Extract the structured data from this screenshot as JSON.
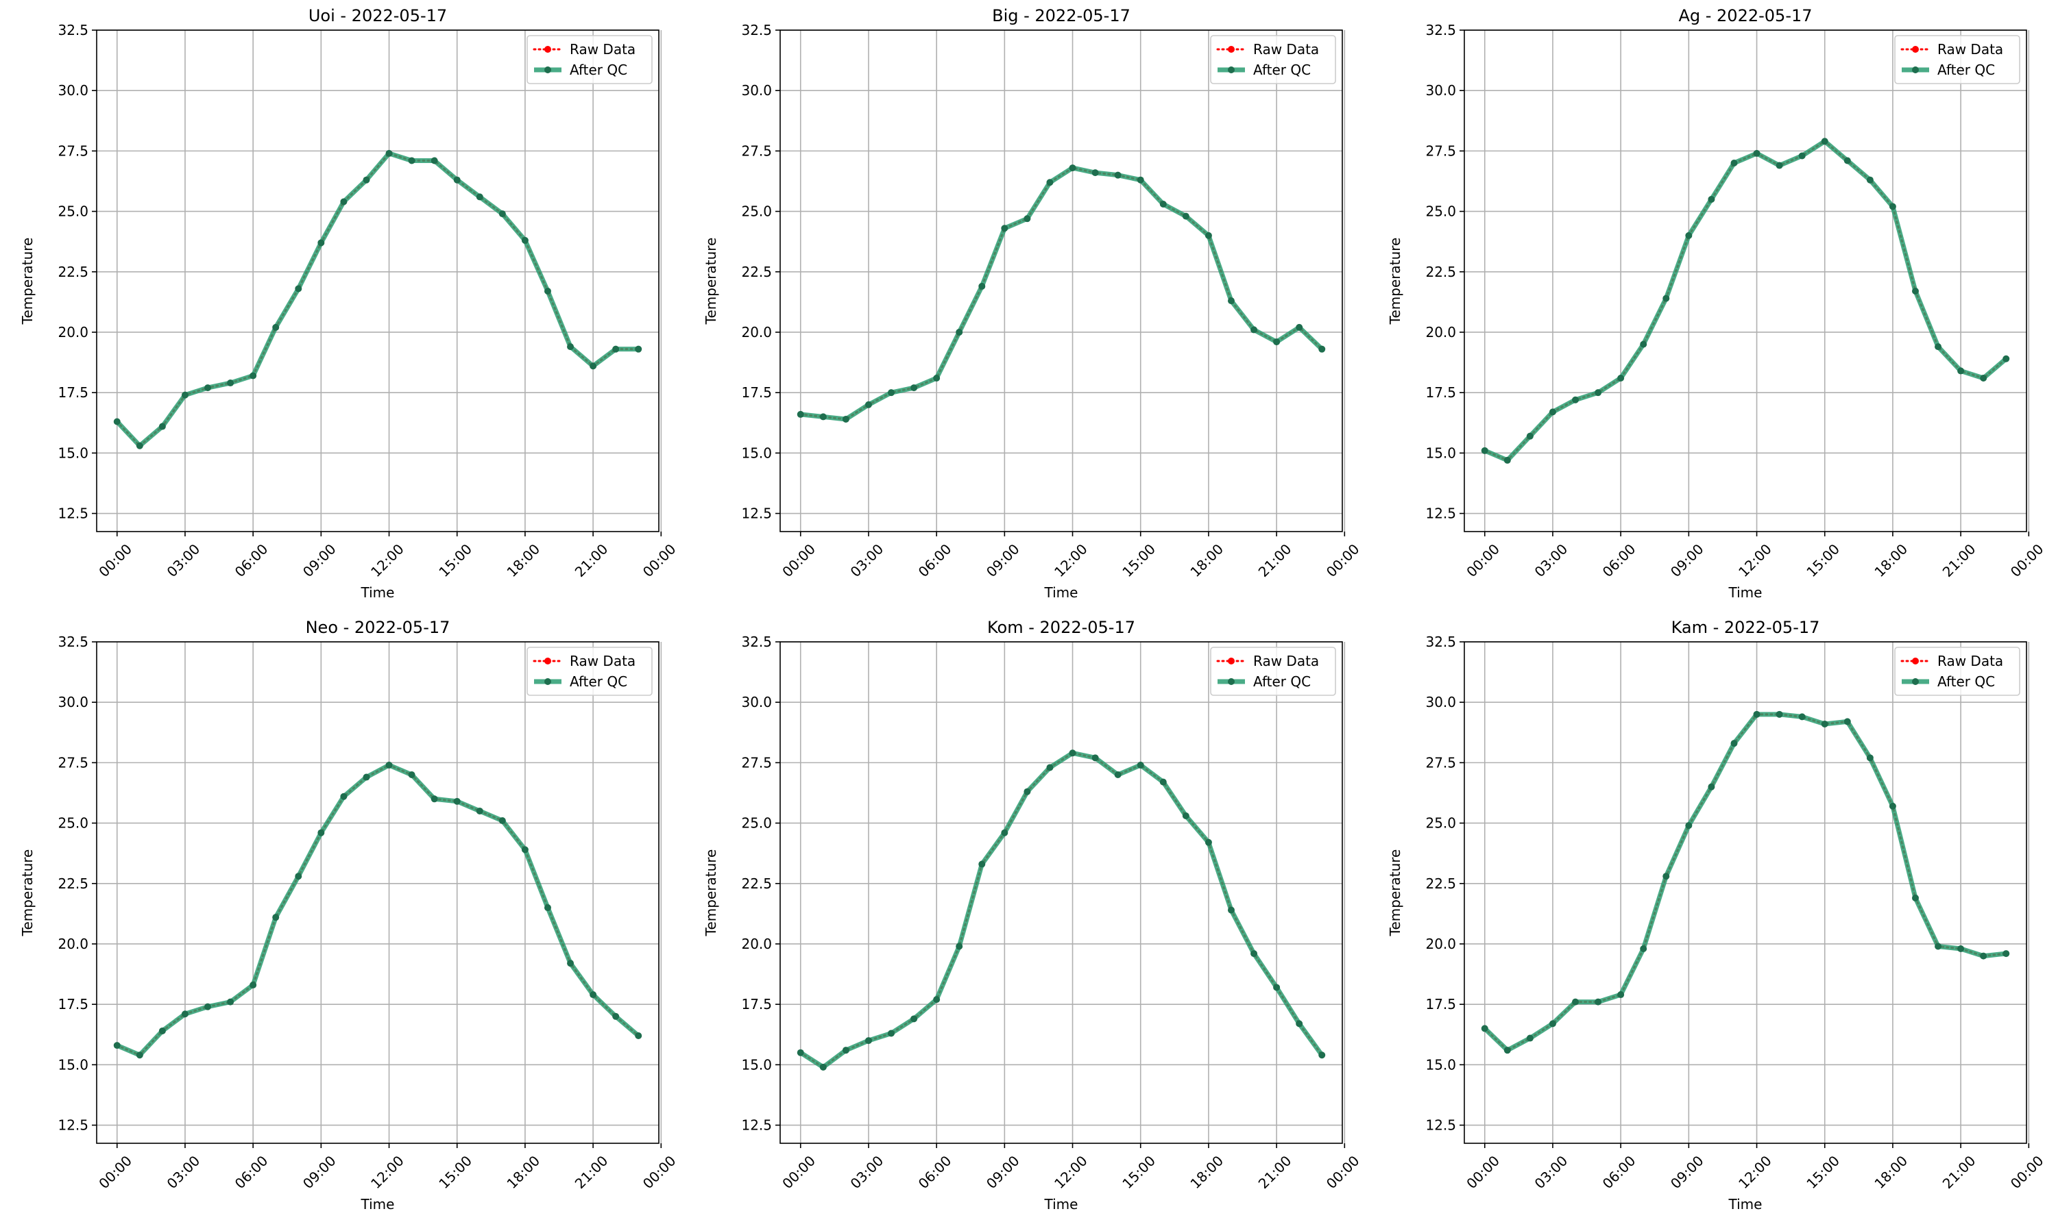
{
  "colors": {
    "raw": "#ff0000",
    "qc": "#2a9d72",
    "qc_marker": "#1e6e4e",
    "grid": "#b0b0b0"
  },
  "chart_data": [
    {
      "type": "line",
      "title": "Uoi - 2022-05-17",
      "xlabel": "Time",
      "ylabel": "Temperature",
      "ylim": [
        11.75,
        32.5
      ],
      "xlim": [
        -0.9,
        23.9
      ],
      "grid": true,
      "legend": "top-right",
      "x_hours": [
        0,
        1,
        2,
        3,
        4,
        5,
        6,
        7,
        8,
        9,
        10,
        11,
        12,
        13,
        14,
        15,
        16,
        17,
        18,
        19,
        20,
        21,
        22,
        23
      ],
      "xtick_hours": [
        0,
        3,
        6,
        9,
        12,
        15,
        18,
        21,
        24
      ],
      "xtick_labels": [
        "00:00",
        "03:00",
        "06:00",
        "09:00",
        "12:00",
        "15:00",
        "18:00",
        "21:00",
        "00:00"
      ],
      "yticks": [
        12.5,
        15.0,
        17.5,
        20.0,
        22.5,
        25.0,
        27.5,
        30.0,
        32.5
      ],
      "ytick_labels": [
        "12.5",
        "15.0",
        "17.5",
        "20.0",
        "22.5",
        "25.0",
        "27.5",
        "30.0",
        "32.5"
      ],
      "series": [
        {
          "name": "Raw Data",
          "values": [
            16.3,
            15.3,
            16.1,
            17.4,
            17.7,
            17.9,
            18.2,
            20.2,
            21.8,
            23.7,
            25.4,
            26.3,
            27.4,
            27.1,
            27.1,
            26.3,
            25.6,
            24.9,
            23.8,
            21.7,
            19.4,
            18.6,
            19.3,
            19.3
          ]
        },
        {
          "name": "After QC",
          "values": [
            16.3,
            15.3,
            16.1,
            17.4,
            17.7,
            17.9,
            18.2,
            20.2,
            21.8,
            23.7,
            25.4,
            26.3,
            27.4,
            27.1,
            27.1,
            26.3,
            25.6,
            24.9,
            23.8,
            21.7,
            19.4,
            18.6,
            19.3,
            19.3
          ]
        }
      ]
    },
    {
      "type": "line",
      "title": "Big - 2022-05-17",
      "xlabel": "Time",
      "ylabel": "Temperature",
      "ylim": [
        11.75,
        32.5
      ],
      "xlim": [
        -0.9,
        23.9
      ],
      "grid": true,
      "legend": "top-right",
      "x_hours": [
        0,
        1,
        2,
        3,
        4,
        5,
        6,
        7,
        8,
        9,
        10,
        11,
        12,
        13,
        14,
        15,
        16,
        17,
        18,
        19,
        20,
        21,
        22,
        23
      ],
      "xtick_hours": [
        0,
        3,
        6,
        9,
        12,
        15,
        18,
        21,
        24
      ],
      "xtick_labels": [
        "00:00",
        "03:00",
        "06:00",
        "09:00",
        "12:00",
        "15:00",
        "18:00",
        "21:00",
        "00:00"
      ],
      "yticks": [
        12.5,
        15.0,
        17.5,
        20.0,
        22.5,
        25.0,
        27.5,
        30.0,
        32.5
      ],
      "ytick_labels": [
        "12.5",
        "15.0",
        "17.5",
        "20.0",
        "22.5",
        "25.0",
        "27.5",
        "30.0",
        "32.5"
      ],
      "series": [
        {
          "name": "Raw Data",
          "values": [
            16.6,
            16.5,
            16.4,
            17.0,
            17.5,
            17.7,
            18.1,
            20.0,
            21.9,
            24.3,
            24.7,
            26.2,
            26.8,
            26.6,
            26.5,
            26.3,
            25.3,
            24.8,
            24.0,
            21.3,
            20.1,
            19.6,
            20.2,
            19.3
          ]
        },
        {
          "name": "After QC",
          "values": [
            16.6,
            16.5,
            16.4,
            17.0,
            17.5,
            17.7,
            18.1,
            20.0,
            21.9,
            24.3,
            24.7,
            26.2,
            26.8,
            26.6,
            26.5,
            26.3,
            25.3,
            24.8,
            24.0,
            21.3,
            20.1,
            19.6,
            20.2,
            19.3
          ]
        }
      ]
    },
    {
      "type": "line",
      "title": "Ag - 2022-05-17",
      "xlabel": "Time",
      "ylabel": "Temperature",
      "ylim": [
        11.75,
        32.5
      ],
      "xlim": [
        -0.9,
        23.9
      ],
      "grid": true,
      "legend": "top-right",
      "x_hours": [
        0,
        1,
        2,
        3,
        4,
        5,
        6,
        7,
        8,
        9,
        10,
        11,
        12,
        13,
        14,
        15,
        16,
        17,
        18,
        19,
        20,
        21,
        22,
        23
      ],
      "xtick_hours": [
        0,
        3,
        6,
        9,
        12,
        15,
        18,
        21,
        24
      ],
      "xtick_labels": [
        "00:00",
        "03:00",
        "06:00",
        "09:00",
        "12:00",
        "15:00",
        "18:00",
        "21:00",
        "00:00"
      ],
      "yticks": [
        12.5,
        15.0,
        17.5,
        20.0,
        22.5,
        25.0,
        27.5,
        30.0,
        32.5
      ],
      "ytick_labels": [
        "12.5",
        "15.0",
        "17.5",
        "20.0",
        "22.5",
        "25.0",
        "27.5",
        "30.0",
        "32.5"
      ],
      "series": [
        {
          "name": "Raw Data",
          "values": [
            15.1,
            14.7,
            15.7,
            16.7,
            17.2,
            17.5,
            18.1,
            19.5,
            21.4,
            24.0,
            25.5,
            27.0,
            27.4,
            26.9,
            27.3,
            27.9,
            27.1,
            26.3,
            25.2,
            21.7,
            19.4,
            18.4,
            18.1,
            18.9
          ]
        },
        {
          "name": "After QC",
          "values": [
            15.1,
            14.7,
            15.7,
            16.7,
            17.2,
            17.5,
            18.1,
            19.5,
            21.4,
            24.0,
            25.5,
            27.0,
            27.4,
            26.9,
            27.3,
            27.9,
            27.1,
            26.3,
            25.2,
            21.7,
            19.4,
            18.4,
            18.1,
            18.9
          ]
        }
      ]
    },
    {
      "type": "line",
      "title": "Neo - 2022-05-17",
      "xlabel": "Time",
      "ylabel": "Temperature",
      "ylim": [
        11.75,
        32.5
      ],
      "xlim": [
        -0.9,
        23.9
      ],
      "grid": true,
      "legend": "top-right",
      "x_hours": [
        0,
        1,
        2,
        3,
        4,
        5,
        6,
        7,
        8,
        9,
        10,
        11,
        12,
        13,
        14,
        15,
        16,
        17,
        18,
        19,
        20,
        21,
        22,
        23
      ],
      "xtick_hours": [
        0,
        3,
        6,
        9,
        12,
        15,
        18,
        21,
        24
      ],
      "xtick_labels": [
        "00:00",
        "03:00",
        "06:00",
        "09:00",
        "12:00",
        "15:00",
        "18:00",
        "21:00",
        "00:00"
      ],
      "yticks": [
        12.5,
        15.0,
        17.5,
        20.0,
        22.5,
        25.0,
        27.5,
        30.0,
        32.5
      ],
      "ytick_labels": [
        "12.5",
        "15.0",
        "17.5",
        "20.0",
        "22.5",
        "25.0",
        "27.5",
        "30.0",
        "32.5"
      ],
      "series": [
        {
          "name": "Raw Data",
          "values": [
            15.8,
            15.4,
            16.4,
            17.1,
            17.4,
            17.6,
            18.3,
            21.1,
            22.8,
            24.6,
            26.1,
            26.9,
            27.4,
            27.0,
            26.0,
            25.9,
            25.5,
            25.1,
            23.9,
            21.5,
            19.2,
            17.9,
            17.0,
            16.2
          ]
        },
        {
          "name": "After QC",
          "values": [
            15.8,
            15.4,
            16.4,
            17.1,
            17.4,
            17.6,
            18.3,
            21.1,
            22.8,
            24.6,
            26.1,
            26.9,
            27.4,
            27.0,
            26.0,
            25.9,
            25.5,
            25.1,
            23.9,
            21.5,
            19.2,
            17.9,
            17.0,
            16.2
          ]
        }
      ]
    },
    {
      "type": "line",
      "title": "Kom - 2022-05-17",
      "xlabel": "Time",
      "ylabel": "Temperature",
      "ylim": [
        11.75,
        32.5
      ],
      "xlim": [
        -0.9,
        23.9
      ],
      "grid": true,
      "legend": "top-right",
      "x_hours": [
        0,
        1,
        2,
        3,
        4,
        5,
        6,
        7,
        8,
        9,
        10,
        11,
        12,
        13,
        14,
        15,
        16,
        17,
        18,
        19,
        20,
        21,
        22,
        23
      ],
      "xtick_hours": [
        0,
        3,
        6,
        9,
        12,
        15,
        18,
        21,
        24
      ],
      "xtick_labels": [
        "00:00",
        "03:00",
        "06:00",
        "09:00",
        "12:00",
        "15:00",
        "18:00",
        "21:00",
        "00:00"
      ],
      "yticks": [
        12.5,
        15.0,
        17.5,
        20.0,
        22.5,
        25.0,
        27.5,
        30.0,
        32.5
      ],
      "ytick_labels": [
        "12.5",
        "15.0",
        "17.5",
        "20.0",
        "22.5",
        "25.0",
        "27.5",
        "30.0",
        "32.5"
      ],
      "series": [
        {
          "name": "Raw Data",
          "values": [
            15.5,
            14.9,
            15.6,
            16.0,
            16.3,
            16.9,
            17.7,
            19.9,
            23.3,
            24.6,
            26.3,
            27.3,
            27.9,
            27.7,
            27.0,
            27.4,
            26.7,
            25.3,
            24.2,
            21.4,
            19.6,
            18.2,
            16.7,
            15.4
          ]
        },
        {
          "name": "After QC",
          "values": [
            15.5,
            14.9,
            15.6,
            16.0,
            16.3,
            16.9,
            17.7,
            19.9,
            23.3,
            24.6,
            26.3,
            27.3,
            27.9,
            27.7,
            27.0,
            27.4,
            26.7,
            25.3,
            24.2,
            21.4,
            19.6,
            18.2,
            16.7,
            15.4
          ]
        }
      ]
    },
    {
      "type": "line",
      "title": "Kam - 2022-05-17",
      "xlabel": "Time",
      "ylabel": "Temperature",
      "ylim": [
        11.75,
        32.5
      ],
      "xlim": [
        -0.9,
        23.9
      ],
      "grid": true,
      "legend": "top-right",
      "x_hours": [
        0,
        1,
        2,
        3,
        4,
        5,
        6,
        7,
        8,
        9,
        10,
        11,
        12,
        13,
        14,
        15,
        16,
        17,
        18,
        19,
        20,
        21,
        22,
        23
      ],
      "xtick_hours": [
        0,
        3,
        6,
        9,
        12,
        15,
        18,
        21,
        24
      ],
      "xtick_labels": [
        "00:00",
        "03:00",
        "06:00",
        "09:00",
        "12:00",
        "15:00",
        "18:00",
        "21:00",
        "00:00"
      ],
      "yticks": [
        12.5,
        15.0,
        17.5,
        20.0,
        22.5,
        25.0,
        27.5,
        30.0,
        32.5
      ],
      "ytick_labels": [
        "12.5",
        "15.0",
        "17.5",
        "20.0",
        "22.5",
        "25.0",
        "27.5",
        "30.0",
        "32.5"
      ],
      "series": [
        {
          "name": "Raw Data",
          "values": [
            16.5,
            15.6,
            16.1,
            16.7,
            17.6,
            17.6,
            17.9,
            19.8,
            22.8,
            24.9,
            26.5,
            28.3,
            29.5,
            29.5,
            29.4,
            29.1,
            29.2,
            27.7,
            25.7,
            21.9,
            19.9,
            19.8,
            19.5,
            19.6
          ]
        },
        {
          "name": "After QC",
          "values": [
            16.5,
            15.6,
            16.1,
            16.7,
            17.6,
            17.6,
            17.9,
            19.8,
            22.8,
            24.9,
            26.5,
            28.3,
            29.5,
            29.5,
            29.4,
            29.1,
            29.2,
            27.7,
            25.7,
            21.9,
            19.9,
            19.8,
            19.5,
            19.6
          ]
        }
      ]
    }
  ]
}
